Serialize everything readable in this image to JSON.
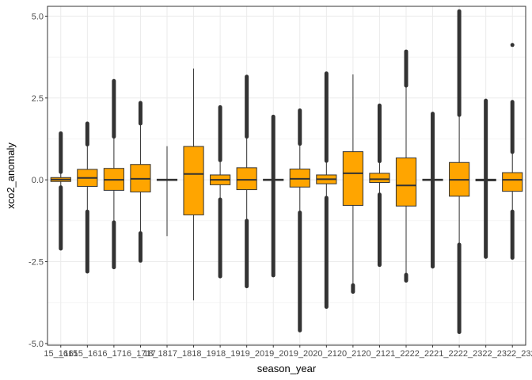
{
  "chart_data": {
    "type": "boxplot",
    "xlabel": "season_year",
    "ylabel": "xco2_anomaly",
    "ylim": [
      -5.05,
      5.3
    ],
    "yticks": [
      -5.0,
      -2.5,
      0.0,
      2.5,
      5.0
    ],
    "ytick_labels": [
      "-5.0",
      "-2.5",
      "0.0",
      "2.5",
      "5.0"
    ],
    "grid": true,
    "categories": [
      "15_1615",
      "15_1616",
      "16_1716",
      "16_1717",
      "17_1817",
      "17_1818",
      "18_1918",
      "18_1919",
      "19_2019",
      "19_2020",
      "20_2120",
      "20_2121",
      "21_2221",
      "21_2222",
      "22_2322",
      "22_2323",
      "23_2423",
      "23_24_2"
    ],
    "category_labels": [
      "15_1615",
      "_1615_1616_1716_1717",
      "",
      "",
      "_18_1817_1818_1918_1919_2019_2019_2020_2120_2120_2121_2222_2221_2222_2322_2322_2323_2423_2423_24_2",
      "",
      "",
      "",
      "",
      "",
      "",
      "",
      "",
      "",
      "",
      "",
      "",
      ""
    ],
    "boxes": [
      {
        "q1": -0.05,
        "median": 0.01,
        "q3": 0.07,
        "whisker_low": -0.23,
        "whisker_high": 0.24,
        "outlier_low": -2.1,
        "outlier_high": 1.42
      },
      {
        "q1": -0.2,
        "median": 0.06,
        "q3": 0.32,
        "whisker_low": -0.97,
        "whisker_high": 1.08,
        "outlier_low": -2.8,
        "outlier_high": 1.72
      },
      {
        "q1": -0.32,
        "median": 0.0,
        "q3": 0.35,
        "whisker_low": -1.3,
        "whisker_high": 1.32,
        "outlier_low": -2.67,
        "outlier_high": 3.02
      },
      {
        "q1": -0.37,
        "median": 0.03,
        "q3": 0.47,
        "whisker_low": -1.63,
        "whisker_high": 1.72,
        "outlier_low": -2.47,
        "outlier_high": 2.35
      },
      {
        "q1": -0.02,
        "median": 0.0,
        "q3": 0.02,
        "whisker_low": -1.72,
        "whisker_high": 1.03,
        "outlier_low": null,
        "outlier_high": null
      },
      {
        "q1": -1.07,
        "median": 0.18,
        "q3": 1.02,
        "whisker_low": -3.68,
        "whisker_high": 3.4,
        "outlier_low": null,
        "outlier_high": null
      },
      {
        "q1": -0.15,
        "median": 0.0,
        "q3": 0.15,
        "whisker_low": -0.6,
        "whisker_high": 0.6,
        "outlier_low": -2.95,
        "outlier_high": 2.22
      },
      {
        "q1": -0.3,
        "median": 0.0,
        "q3": 0.37,
        "whisker_low": -1.25,
        "whisker_high": 1.32,
        "outlier_low": -3.25,
        "outlier_high": 3.15
      },
      {
        "q1": -0.02,
        "median": 0.0,
        "q3": 0.02,
        "whisker_low": -0.05,
        "whisker_high": 0.05,
        "outlier_low": -2.92,
        "outlier_high": 1.93
      },
      {
        "q1": -0.22,
        "median": 0.03,
        "q3": 0.33,
        "whisker_low": -1.0,
        "whisker_high": 1.1,
        "outlier_low": -4.6,
        "outlier_high": 2.12
      },
      {
        "q1": -0.12,
        "median": 0.02,
        "q3": 0.15,
        "whisker_low": -0.55,
        "whisker_high": 0.58,
        "outlier_low": -3.88,
        "outlier_high": 3.25
      },
      {
        "q1": -0.78,
        "median": 0.2,
        "q3": 0.86,
        "whisker_low": -3.22,
        "whisker_high": 3.22,
        "outlier_low": -3.42,
        "outlier_high": null
      },
      {
        "q1": -0.08,
        "median": 0.02,
        "q3": 0.2,
        "whisker_low": -0.45,
        "whisker_high": 0.57,
        "outlier_low": -2.6,
        "outlier_high": 2.27
      },
      {
        "q1": -0.8,
        "median": -0.17,
        "q3": 0.67,
        "whisker_low": -2.9,
        "whisker_high": 2.88,
        "outlier_low": -3.08,
        "outlier_high": 3.92
      },
      {
        "q1": -0.02,
        "median": 0.0,
        "q3": 0.02,
        "whisker_low": -0.05,
        "whisker_high": 0.05,
        "outlier_low": -2.65,
        "outlier_high": 2.02
      },
      {
        "q1": -0.5,
        "median": 0.0,
        "q3": 0.53,
        "whisker_low": -1.98,
        "whisker_high": 1.98,
        "outlier_low": -4.65,
        "outlier_high": 5.15
      },
      {
        "q1": -0.03,
        "median": 0.0,
        "q3": 0.02,
        "whisker_low": -0.05,
        "whisker_high": 0.05,
        "outlier_low": -2.35,
        "outlier_high": 2.42
      },
      {
        "q1": -0.35,
        "median": 0.0,
        "q3": 0.22,
        "whisker_low": -0.97,
        "whisker_high": 0.85,
        "outlier_low": -2.38,
        "outlier_high": 2.38,
        "outlier_single_high": 4.12
      }
    ],
    "colors": {
      "box_fill": "#FFA500",
      "line": "#333333",
      "grid": "#EBEBEB",
      "panel_border": "#333333"
    }
  }
}
